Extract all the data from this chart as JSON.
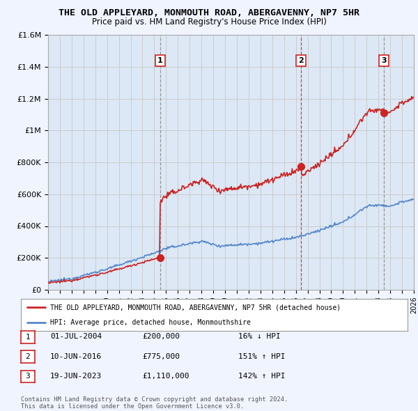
{
  "title": "THE OLD APPLEYARD, MONMOUTH ROAD, ABERGAVENNY, NP7 5HR",
  "subtitle": "Price paid vs. HM Land Registry's House Price Index (HPI)",
  "ylim": [
    0,
    1600000
  ],
  "yticks": [
    0,
    200000,
    400000,
    600000,
    800000,
    1000000,
    1200000,
    1400000,
    1600000
  ],
  "ytick_labels": [
    "£0",
    "£200K",
    "£400K",
    "£600K",
    "£800K",
    "£1M",
    "£1.2M",
    "£1.4M",
    "£1.6M"
  ],
  "xlim_start": 1995.0,
  "xlim_end": 2026.0,
  "sale_dates": [
    2004.5,
    2016.44,
    2023.46
  ],
  "sale_prices": [
    200000,
    775000,
    1110000
  ],
  "sale_labels": [
    "1",
    "2",
    "3"
  ],
  "hpi_color": "#5588cc",
  "sale_color": "#cc2222",
  "vline_color_grey": "#888888",
  "vline_color_red": "#cc2222",
  "grid_color": "#cccccc",
  "plot_bg_color": "#dce8f5",
  "bg_color": "#f0f4ff",
  "legend_entries": [
    "THE OLD APPLEYARD, MONMOUTH ROAD, ABERGAVENNY, NP7 5HR (detached house)",
    "HPI: Average price, detached house, Monmouthshire"
  ],
  "table_data": [
    [
      "1",
      "01-JUL-2004",
      "£200,000",
      "16% ↓ HPI"
    ],
    [
      "2",
      "10-JUN-2016",
      "£775,000",
      "151% ↑ HPI"
    ],
    [
      "3",
      "19-JUN-2023",
      "£1,110,000",
      "142% ↑ HPI"
    ]
  ],
  "footnote": "Contains HM Land Registry data © Crown copyright and database right 2024.\nThis data is licensed under the Open Government Licence v3.0.",
  "vline_styles": [
    "dashed_grey",
    "dashed_red",
    "dashed_grey"
  ]
}
